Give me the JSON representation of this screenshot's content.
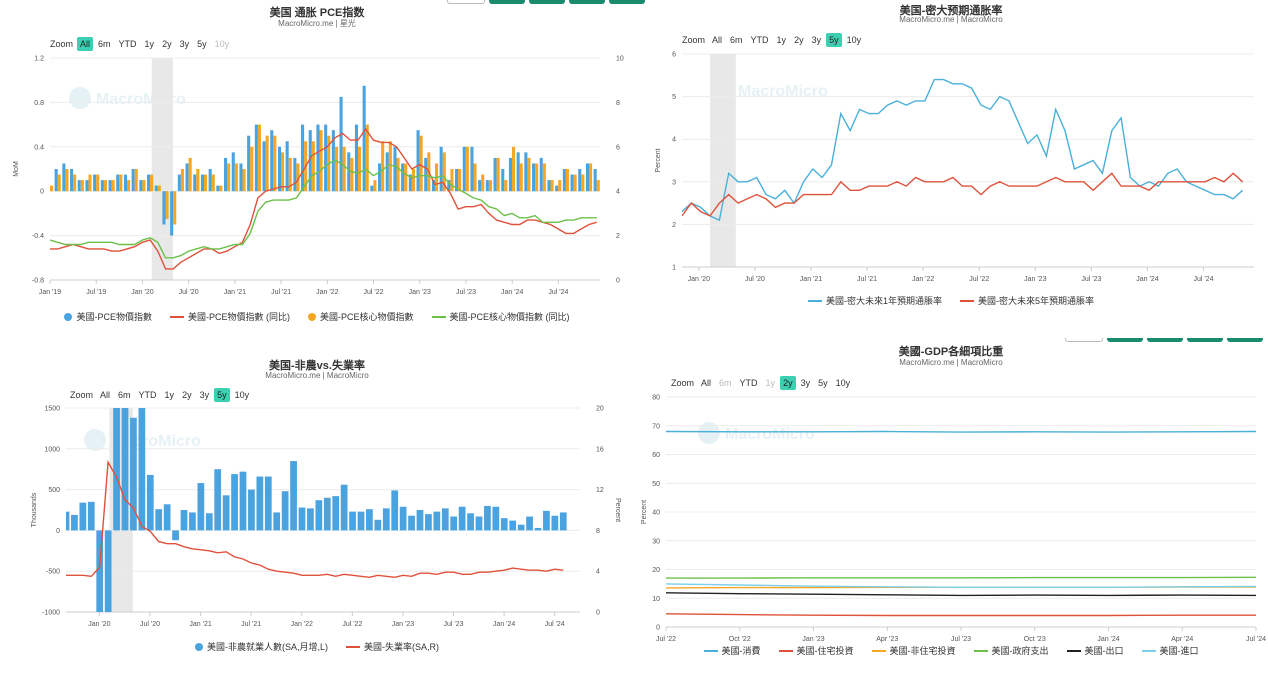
{
  "charts": [
    {
      "title": "美国 通胀 PCE指数",
      "subtitle": "MacroMicro.me | 星光",
      "zoom": {
        "label": "Zoom",
        "buttons": [
          "All",
          "6m",
          "YTD",
          "1y",
          "2y",
          "3y",
          "5y",
          "10y"
        ],
        "active": "All",
        "disabled": [
          "10y"
        ]
      },
      "watermark": "MacroMicro",
      "legend": [
        "美國-PCE物價指數",
        "美國-PCE物價指數 (同比)",
        "美國-PCE核心物價指數",
        "美國-PCE核心物價指數 (同比)"
      ]
    },
    {
      "title": "美国-密大预期通胀率",
      "subtitle": "MacroMicro.me | MacroMicro",
      "zoom": {
        "label": "Zoom",
        "buttons": [
          "All",
          "6m",
          "YTD",
          "1y",
          "2y",
          "3y",
          "5y",
          "10y"
        ],
        "active": "5y",
        "disabled": []
      },
      "watermark": "MacroMicro",
      "legend": [
        "美國-密大未來1年預期通脹率",
        "美國-密大未來5年預期通脹率"
      ]
    },
    {
      "title": "美国-非農vs.失業率",
      "subtitle": "MacroMicro.me | MacroMicro",
      "zoom": {
        "label": "Zoom",
        "buttons": [
          "All",
          "6m",
          "YTD",
          "1y",
          "2y",
          "3y",
          "5y",
          "10y"
        ],
        "active": "5y",
        "disabled": []
      },
      "watermark": "MacroMicro",
      "legend": [
        "美國-非農就業人數(SA,月增,L)",
        "美國-失業率(SA,R)"
      ]
    },
    {
      "title": "美國-GDP各細項比重",
      "subtitle": "MacroMicro.me | MacroMicro",
      "zoom": {
        "label": "Zoom",
        "buttons": [
          "All",
          "6m",
          "YTD",
          "1y",
          "2y",
          "3y",
          "5y",
          "10y"
        ],
        "active": "2y",
        "disabled": [
          "6m",
          "1y"
        ]
      },
      "watermark": "MacroMicro",
      "legend": [
        "美國-消費",
        "美國-住宅投資",
        "美國-非住宅投資",
        "美國-政府支出",
        "美國-出口",
        "美國-進口"
      ]
    }
  ],
  "chart_data": [
    {
      "type": "bar",
      "xticks": [
        "Jan '19",
        "Jul '19",
        "Jan '20",
        "Jul '20",
        "Jan '21",
        "Jul '21",
        "Jan '22",
        "Jul '22",
        "Jan '23",
        "Jul '23",
        "Jan '24",
        "Jul '24"
      ],
      "ylabel": "MoM",
      "ylabel_right": "YoY",
      "ylim": [
        -0.8,
        1.2
      ],
      "yticks": [
        -0.8,
        -0.4,
        0,
        0.4,
        0.8,
        1.2
      ],
      "ylim_right": [
        0,
        10
      ],
      "yticks_right": [
        0,
        2,
        4,
        6,
        8,
        10
      ],
      "recession": [
        2020.1,
        2020.33
      ],
      "x_start": 2019.0,
      "x_step": 0.0833,
      "series": [
        {
          "name": "美國-PCE物價指數",
          "kind": "bar",
          "axis": "left",
          "color": "#4aa3df",
          "values": [
            0.1,
            0.2,
            0.25,
            0.2,
            0.1,
            0.1,
            0.15,
            0.1,
            0.1,
            0.15,
            0.15,
            0.2,
            0.1,
            0.15,
            0.05,
            -0.3,
            -0.4,
            0.15,
            0.25,
            0.15,
            0.15,
            0.2,
            0.05,
            0.3,
            0.35,
            0.25,
            0.5,
            0.6,
            0.45,
            0.55,
            0.4,
            0.45,
            0.3,
            0.6,
            0.55,
            0.6,
            0.6,
            0.55,
            0.85,
            0.35,
            0.6,
            0.95,
            0.05,
            0.25,
            0.35,
            0.4,
            0.25,
            0.15,
            0.55,
            0.3,
            0.1,
            0.4,
            0.1,
            0.2,
            0.4,
            0.4,
            0.1,
            0.1,
            0.3,
            0.2,
            0.3,
            0.35,
            0.35,
            0.25,
            0.3,
            0.1,
            0.05,
            0.2,
            0.15,
            0.2,
            0.25,
            0.2
          ]
        },
        {
          "name": "美國-PCE核心物價指數",
          "kind": "bar",
          "axis": "left",
          "color": "#f5a623",
          "values": [
            0.05,
            0.15,
            0.2,
            0.15,
            0.1,
            0.15,
            0.15,
            0.1,
            0.1,
            0.15,
            0.1,
            0.2,
            0.1,
            0.15,
            0.05,
            -0.25,
            -0.3,
            0.2,
            0.3,
            0.2,
            0.15,
            0.15,
            0.05,
            0.25,
            0.25,
            0.2,
            0.4,
            0.6,
            0.5,
            0.5,
            0.35,
            0.3,
            0.25,
            0.45,
            0.45,
            0.55,
            0.5,
            0.4,
            0.4,
            0.3,
            0.4,
            0.6,
            0.1,
            0.45,
            0.45,
            0.3,
            0.25,
            0.2,
            0.5,
            0.35,
            0.25,
            0.35,
            0.2,
            0.2,
            0.4,
            0.25,
            0.15,
            0.1,
            0.3,
            0.1,
            0.4,
            0.25,
            0.3,
            0.25,
            0.25,
            0.1,
            0.1,
            0.2,
            0.15,
            0.15,
            0.25,
            0.1
          ]
        },
        {
          "name": "美國-PCE物價指數 (同比)",
          "kind": "line",
          "axis": "right",
          "color": "#e0513b",
          "values": [
            1.4,
            1.4,
            1.5,
            1.6,
            1.5,
            1.4,
            1.4,
            1.4,
            1.3,
            1.3,
            1.4,
            1.5,
            1.7,
            1.8,
            1.3,
            0.5,
            0.5,
            0.8,
            1.0,
            1.2,
            1.4,
            1.4,
            1.2,
            1.3,
            1.5,
            1.7,
            2.5,
            3.7,
            4.0,
            4.1,
            4.2,
            4.2,
            4.4,
            5.0,
            5.6,
            5.8,
            6.0,
            6.4,
            6.6,
            6.3,
            6.3,
            6.8,
            6.3,
            6.2,
            6.2,
            6.0,
            5.5,
            5.0,
            5.2,
            5.0,
            4.3,
            4.4,
            3.9,
            3.2,
            3.3,
            3.3,
            3.4,
            3.0,
            2.7,
            2.6,
            2.5,
            2.5,
            2.7,
            2.7,
            2.6,
            2.5,
            2.3,
            2.1,
            2.1,
            2.3,
            2.5,
            2.6
          ]
        },
        {
          "name": "美國-PCE核心物價指數 (同比)",
          "kind": "line",
          "axis": "right",
          "color": "#6cc04a",
          "values": [
            1.8,
            1.7,
            1.6,
            1.6,
            1.6,
            1.7,
            1.7,
            1.7,
            1.7,
            1.6,
            1.6,
            1.6,
            1.8,
            1.9,
            1.7,
            1.0,
            1.0,
            1.1,
            1.3,
            1.4,
            1.5,
            1.4,
            1.4,
            1.5,
            1.6,
            1.6,
            2.1,
            3.1,
            3.5,
            3.6,
            3.6,
            3.6,
            3.7,
            4.2,
            4.7,
            4.9,
            5.2,
            5.4,
            5.2,
            4.9,
            4.8,
            5.0,
            4.7,
            4.9,
            5.2,
            5.1,
            4.8,
            4.6,
            4.7,
            4.7,
            4.6,
            4.7,
            4.3,
            4.1,
            3.9,
            3.7,
            3.6,
            3.3,
            3.2,
            2.9,
            3.0,
            2.8,
            2.8,
            2.9,
            2.6,
            2.6,
            2.6,
            2.7,
            2.7,
            2.8,
            2.8,
            2.8
          ]
        }
      ]
    },
    {
      "type": "line",
      "xticks": [
        "Jan '20",
        "Jul '20",
        "Jan '21",
        "Jul '21",
        "Jan '22",
        "Jul '22",
        "Jan '23",
        "Jul '23",
        "Jan '24",
        "Jul '24"
      ],
      "ylabel": "Percent",
      "ylim": [
        1,
        6
      ],
      "yticks": [
        1,
        2,
        3,
        4,
        5,
        6
      ],
      "recession": [
        2020.1,
        2020.33
      ],
      "x_start": 2019.85,
      "x_step": 0.0833,
      "series": [
        {
          "name": "美國-密大未來1年預期通脹率",
          "color": "#4ab0d9",
          "values": [
            2.3,
            2.5,
            2.4,
            2.2,
            2.1,
            3.2,
            3.0,
            3.0,
            3.1,
            2.7,
            2.6,
            2.8,
            2.5,
            3.0,
            3.3,
            3.1,
            3.4,
            4.6,
            4.2,
            4.7,
            4.6,
            4.6,
            4.8,
            4.9,
            4.8,
            4.9,
            4.9,
            5.4,
            5.4,
            5.3,
            5.3,
            5.2,
            4.8,
            4.7,
            5.0,
            4.9,
            4.4,
            3.9,
            4.1,
            3.6,
            4.7,
            4.2,
            3.3,
            3.4,
            3.5,
            3.2,
            4.2,
            4.5,
            3.1,
            2.9,
            3.0,
            2.9,
            3.2,
            3.3,
            3.0,
            2.9,
            2.8,
            2.7,
            2.7,
            2.6,
            2.8
          ]
        },
        {
          "name": "美國-密大未來5年預期通脹率",
          "color": "#e0513b",
          "values": [
            2.2,
            2.5,
            2.3,
            2.2,
            2.5,
            2.7,
            2.5,
            2.6,
            2.7,
            2.6,
            2.4,
            2.5,
            2.5,
            2.7,
            2.7,
            2.7,
            2.7,
            3.0,
            2.8,
            2.8,
            2.9,
            2.9,
            2.9,
            3.0,
            2.9,
            3.1,
            3.0,
            3.0,
            3.0,
            3.1,
            2.9,
            2.9,
            2.7,
            2.9,
            3.0,
            2.9,
            2.9,
            2.9,
            2.9,
            3.0,
            3.1,
            3.0,
            3.0,
            3.0,
            2.8,
            3.0,
            3.2,
            2.9,
            2.9,
            2.9,
            2.8,
            3.0,
            3.0,
            3.0,
            3.0,
            3.0,
            3.0,
            3.1,
            3.0,
            3.2,
            3.0
          ]
        }
      ]
    },
    {
      "type": "bar",
      "xticks": [
        "Jan '20",
        "Jul '20",
        "Jan '21",
        "Jul '21",
        "Jan '22",
        "Jul '22",
        "Jan '23",
        "Jul '23",
        "Jan '24",
        "Jul '24"
      ],
      "ylabel": "Thousands",
      "ylabel_right": "Percent",
      "ylim": [
        -1000,
        1500
      ],
      "yticks": [
        -1000,
        -500,
        0,
        500,
        1000,
        1500
      ],
      "ylim_right": [
        0,
        20
      ],
      "yticks_right": [
        0,
        4,
        8,
        12,
        16,
        20
      ],
      "recession": [
        2020.1,
        2020.33
      ],
      "x_start": 2019.67,
      "x_step": 0.0833,
      "series": [
        {
          "name": "美國-非農就業人數(SA,月增,L)",
          "kind": "bar",
          "axis": "left",
          "color": "#4aa3df",
          "values": [
            230,
            190,
            340,
            350,
            -1000,
            -1000,
            1500,
            1500,
            1380,
            1500,
            680,
            260,
            320,
            -120,
            250,
            220,
            580,
            210,
            750,
            430,
            690,
            720,
            500,
            660,
            660,
            220,
            480,
            850,
            280,
            270,
            370,
            400,
            420,
            560,
            230,
            230,
            260,
            130,
            270,
            490,
            290,
            180,
            250,
            200,
            230,
            270,
            170,
            290,
            210,
            170,
            300,
            290,
            150,
            120,
            70,
            170,
            30,
            240,
            180,
            220
          ]
        },
        {
          "name": "美國-失業率(SA,R)",
          "kind": "line",
          "axis": "right",
          "color": "#e0513b",
          "values": [
            3.6,
            3.6,
            3.6,
            3.5,
            4.4,
            14.7,
            13.2,
            11.0,
            10.2,
            8.4,
            7.9,
            6.9,
            6.7,
            6.7,
            6.4,
            6.2,
            6.1,
            6.0,
            5.8,
            5.9,
            5.4,
            5.2,
            4.8,
            4.6,
            4.2,
            4.0,
            3.9,
            3.8,
            3.6,
            3.6,
            3.6,
            3.7,
            3.5,
            3.7,
            3.6,
            3.5,
            3.4,
            3.6,
            3.5,
            3.4,
            3.6,
            3.5,
            3.8,
            3.8,
            3.7,
            3.9,
            3.9,
            3.7,
            3.7,
            3.9,
            3.9,
            4.0,
            4.1,
            4.3,
            4.2,
            4.1,
            4.1,
            4.0,
            4.2,
            4.1
          ]
        }
      ]
    },
    {
      "type": "line",
      "xticks": [
        "Jul '22",
        "Oct '22",
        "Jan '23",
        "Apr '23",
        "Jul '23",
        "Oct '23",
        "Jan '24",
        "Apr '24",
        "Jul '24"
      ],
      "ylabel": "Percent",
      "ylim": [
        0,
        80
      ],
      "yticks": [
        0,
        10,
        20,
        30,
        40,
        50,
        60,
        70,
        80
      ],
      "series": [
        {
          "name": "美國-消費",
          "color": "#4ab0d9",
          "values": [
            68.0,
            67.9,
            67.9,
            68.0,
            67.8,
            67.9,
            67.8,
            67.9,
            68.0
          ]
        },
        {
          "name": "美國-住宅投資",
          "color": "#e0513b",
          "values": [
            4.6,
            4.3,
            4.1,
            4.0,
            4.0,
            4.0,
            4.0,
            4.1,
            4.1
          ]
        },
        {
          "name": "美國-非住宅投資",
          "color": "#f5a623",
          "values": [
            13.6,
            13.7,
            13.7,
            13.8,
            13.8,
            13.8,
            13.8,
            13.9,
            13.9
          ]
        },
        {
          "name": "美國-政府支出",
          "color": "#6cc04a",
          "values": [
            17.0,
            17.0,
            17.1,
            17.1,
            17.1,
            17.2,
            17.2,
            17.2,
            17.3
          ]
        },
        {
          "name": "美國-出口",
          "color": "#222222",
          "values": [
            11.9,
            11.6,
            11.4,
            11.2,
            11.0,
            11.1,
            11.0,
            11.1,
            11.0
          ]
        },
        {
          "name": "美國-進口",
          "color": "#7ed0e8",
          "values": [
            15.0,
            14.6,
            14.2,
            14.0,
            13.8,
            13.8,
            13.8,
            14.0,
            14.1
          ]
        }
      ]
    }
  ]
}
